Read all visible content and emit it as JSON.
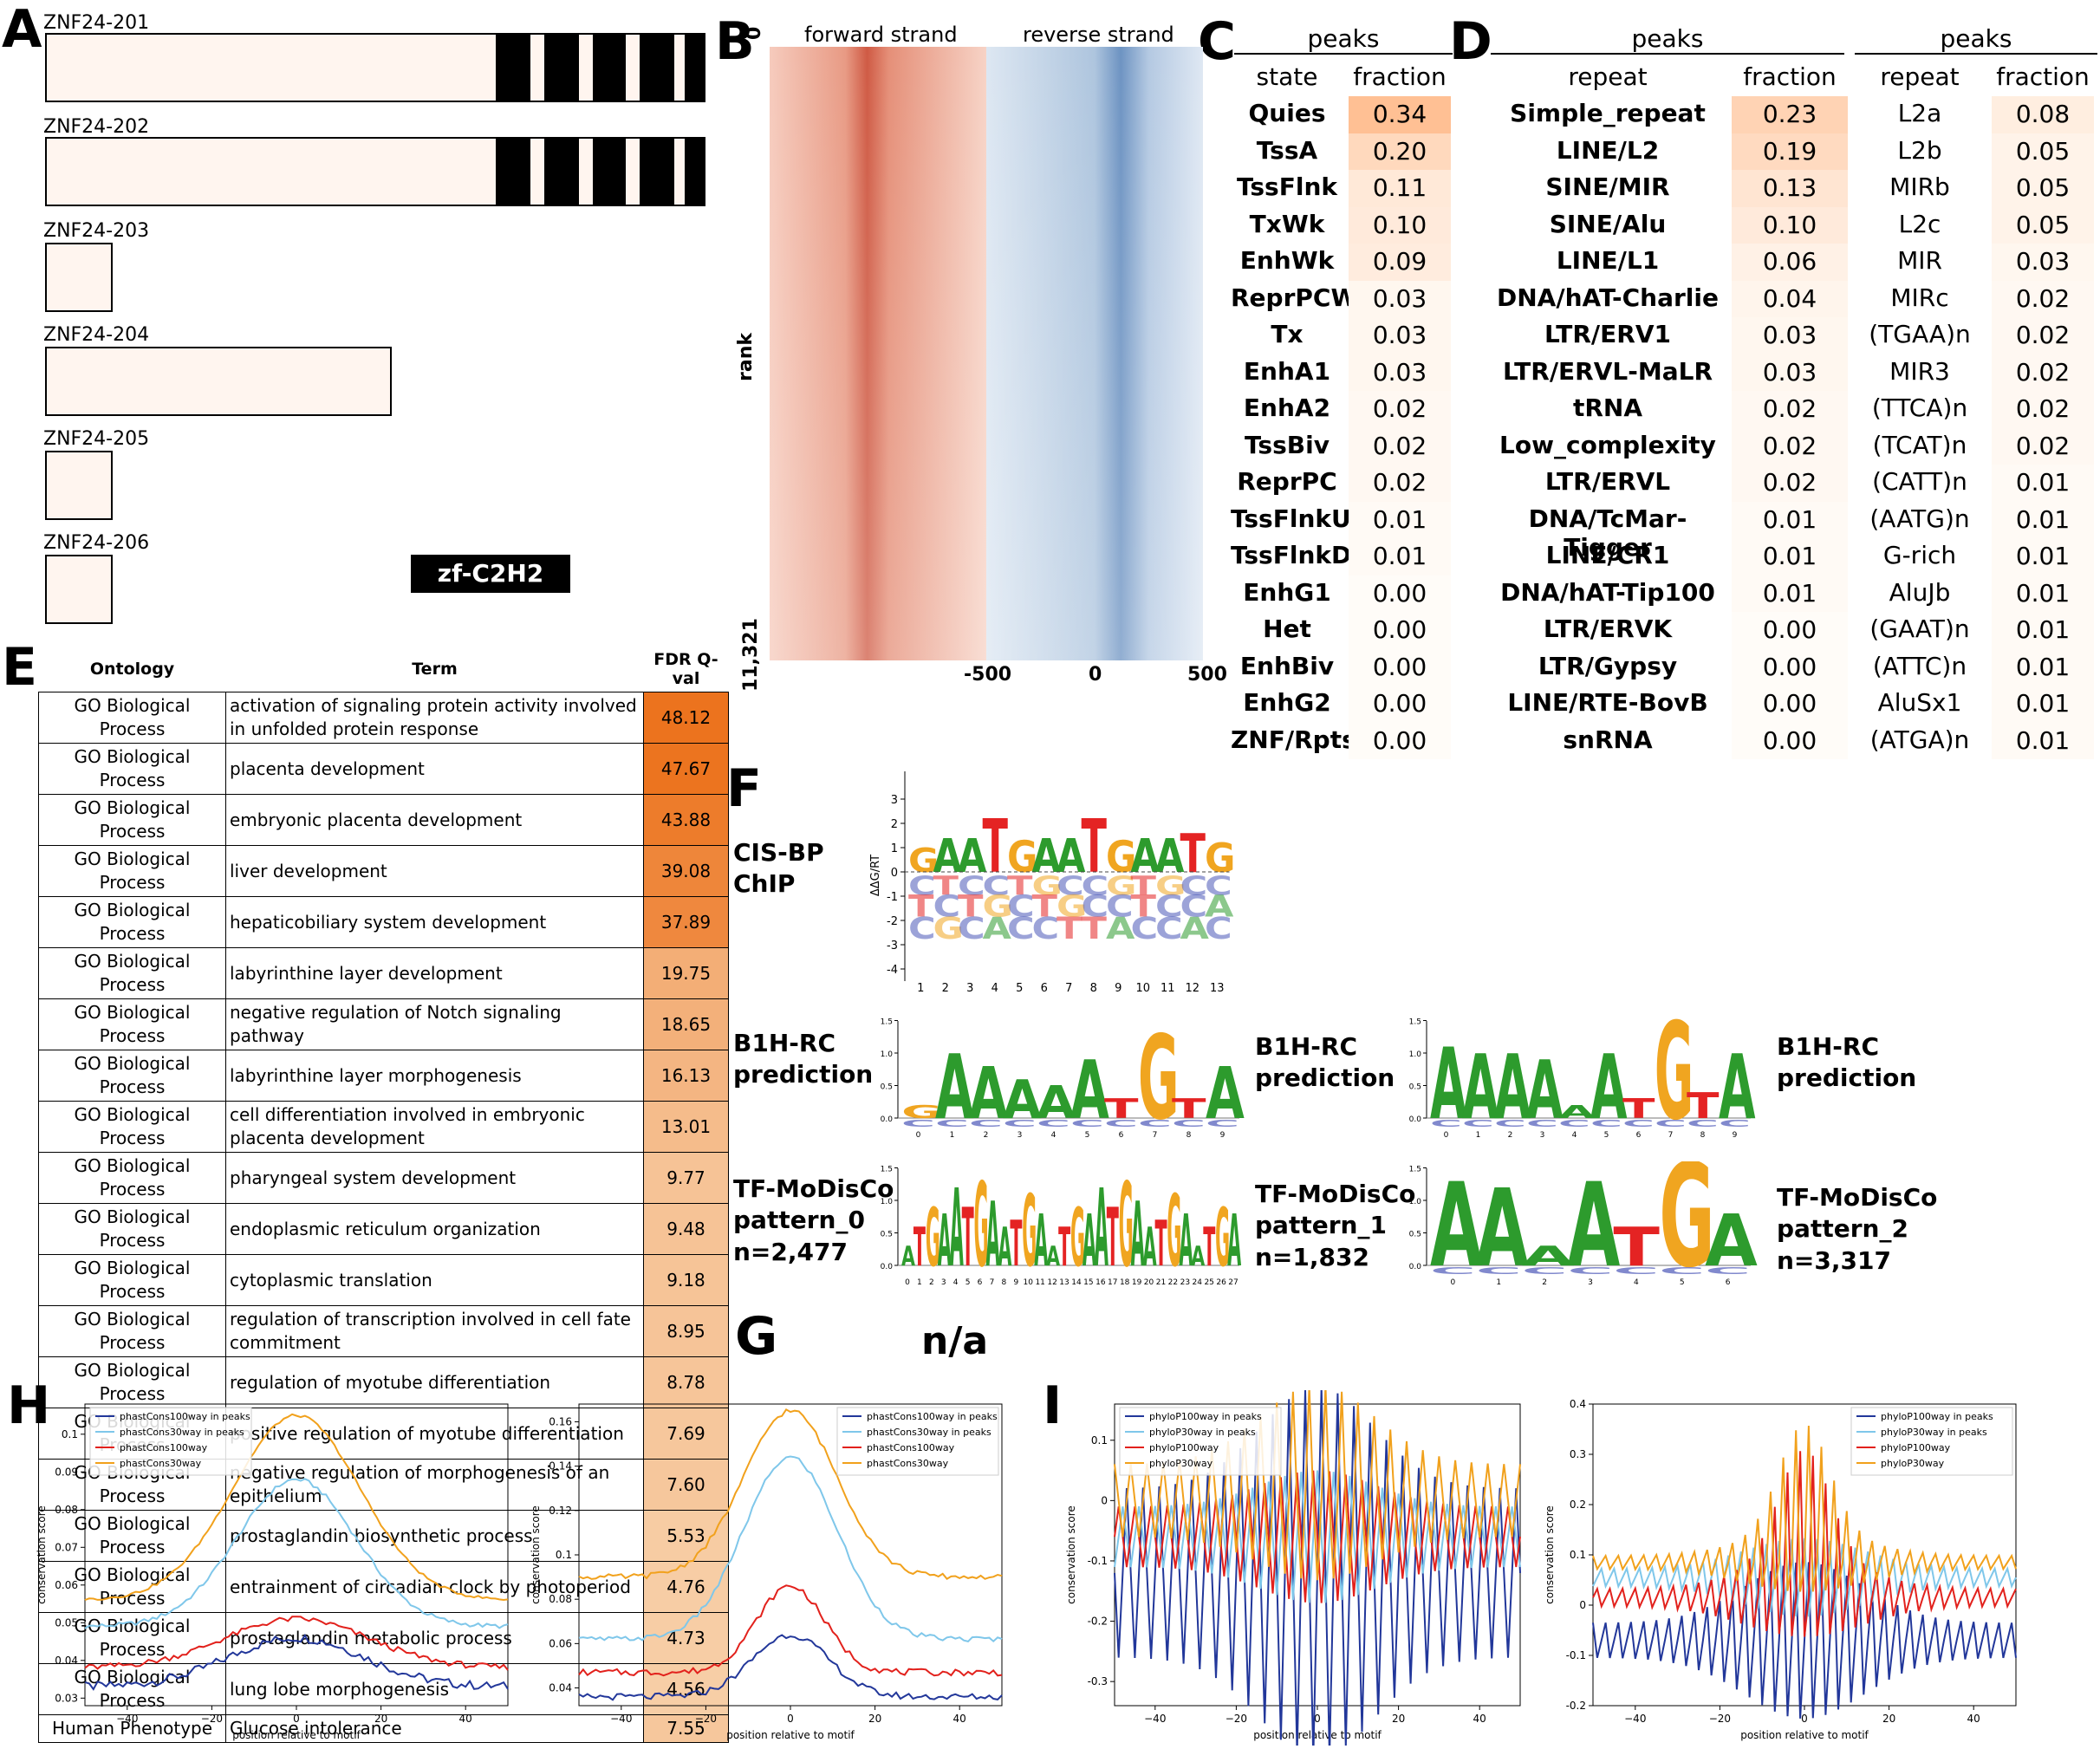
{
  "panel_labels": {
    "A": "A",
    "B": "B",
    "C": "C",
    "D": "D",
    "E": "E",
    "F": "F",
    "G": "G",
    "H": "H",
    "I": "I"
  },
  "panel_a": {
    "transcripts": [
      {
        "name": "ZNF24-201"
      },
      {
        "name": "ZNF24-202"
      },
      {
        "name": "ZNF24-203"
      },
      {
        "name": "ZNF24-204"
      },
      {
        "name": "ZNF24-205"
      },
      {
        "name": "ZNF24-206"
      }
    ],
    "domain_legend": "zf-C2H2"
  },
  "panel_b": {
    "forward_label": "forward strand",
    "reverse_label": "reverse strand",
    "y_label": "rank",
    "y_top": "0",
    "y_bottom": "11,321",
    "x_ticks": [
      "-500",
      "0",
      "500"
    ]
  },
  "panel_c": {
    "title": "peaks",
    "col1": "state",
    "col2": "fraction",
    "rows": [
      {
        "k": "Quies",
        "v": "0.34"
      },
      {
        "k": "TssA",
        "v": "0.20"
      },
      {
        "k": "TssFlnk",
        "v": "0.11"
      },
      {
        "k": "TxWk",
        "v": "0.10"
      },
      {
        "k": "EnhWk",
        "v": "0.09"
      },
      {
        "k": "ReprPCWk",
        "v": "0.03"
      },
      {
        "k": "Tx",
        "v": "0.03"
      },
      {
        "k": "EnhA1",
        "v": "0.03"
      },
      {
        "k": "EnhA2",
        "v": "0.02"
      },
      {
        "k": "TssBiv",
        "v": "0.02"
      },
      {
        "k": "ReprPC",
        "v": "0.02"
      },
      {
        "k": "TssFlnkU",
        "v": "0.01"
      },
      {
        "k": "TssFlnkD",
        "v": "0.01"
      },
      {
        "k": "EnhG1",
        "v": "0.00"
      },
      {
        "k": "Het",
        "v": "0.00"
      },
      {
        "k": "EnhBiv",
        "v": "0.00"
      },
      {
        "k": "EnhG2",
        "v": "0.00"
      },
      {
        "k": "ZNF/Rpts",
        "v": "0.00"
      }
    ]
  },
  "panel_d1": {
    "title": "peaks",
    "col1": "repeat",
    "col2": "fraction",
    "rows": [
      {
        "k": "Simple_repeat",
        "v": "0.23"
      },
      {
        "k": "LINE/L2",
        "v": "0.19"
      },
      {
        "k": "SINE/MIR",
        "v": "0.13"
      },
      {
        "k": "SINE/Alu",
        "v": "0.10"
      },
      {
        "k": "LINE/L1",
        "v": "0.06"
      },
      {
        "k": "DNA/hAT-Charlie",
        "v": "0.04"
      },
      {
        "k": "LTR/ERV1",
        "v": "0.03"
      },
      {
        "k": "LTR/ERVL-MaLR",
        "v": "0.03"
      },
      {
        "k": "tRNA",
        "v": "0.02"
      },
      {
        "k": "Low_complexity",
        "v": "0.02"
      },
      {
        "k": "LTR/ERVL",
        "v": "0.02"
      },
      {
        "k": "DNA/TcMar-Tigger",
        "v": "0.01"
      },
      {
        "k": "LINE/CR1",
        "v": "0.01"
      },
      {
        "k": "DNA/hAT-Tip100",
        "v": "0.01"
      },
      {
        "k": "LTR/ERVK",
        "v": "0.00"
      },
      {
        "k": "LTR/Gypsy",
        "v": "0.00"
      },
      {
        "k": "LINE/RTE-BovB",
        "v": "0.00"
      },
      {
        "k": "snRNA",
        "v": "0.00"
      }
    ]
  },
  "panel_d2": {
    "title": "peaks",
    "col1": "repeat",
    "col2": "fraction",
    "rows": [
      {
        "k": "L2a",
        "v": "0.08"
      },
      {
        "k": "L2b",
        "v": "0.05"
      },
      {
        "k": "MIRb",
        "v": "0.05"
      },
      {
        "k": "L2c",
        "v": "0.05"
      },
      {
        "k": "MIR",
        "v": "0.03"
      },
      {
        "k": "MIRc",
        "v": "0.02"
      },
      {
        "k": "(TGAA)n",
        "v": "0.02"
      },
      {
        "k": "MIR3",
        "v": "0.02"
      },
      {
        "k": "(TTCA)n",
        "v": "0.02"
      },
      {
        "k": "(TCAT)n",
        "v": "0.02"
      },
      {
        "k": "(CATT)n",
        "v": "0.01"
      },
      {
        "k": "(AATG)n",
        "v": "0.01"
      },
      {
        "k": "G-rich",
        "v": "0.01"
      },
      {
        "k": "AluJb",
        "v": "0.01"
      },
      {
        "k": "(GAAT)n",
        "v": "0.01"
      },
      {
        "k": "(ATTC)n",
        "v": "0.01"
      },
      {
        "k": "AluSx1",
        "v": "0.01"
      },
      {
        "k": "(ATGA)n",
        "v": "0.01"
      }
    ]
  },
  "panel_e": {
    "headers": [
      "Ontology",
      "Term",
      "FDR Q-val"
    ],
    "rows": [
      {
        "o": "GO Biological Process",
        "t": "activation of signaling protein activity involved in unfolded protein response",
        "q": "48.12"
      },
      {
        "o": "GO Biological Process",
        "t": "placenta development",
        "q": "47.67"
      },
      {
        "o": "GO Biological Process",
        "t": "embryonic placenta development",
        "q": "43.88"
      },
      {
        "o": "GO Biological Process",
        "t": "liver development",
        "q": "39.08"
      },
      {
        "o": "GO Biological Process",
        "t": "hepaticobiliary system development",
        "q": "37.89"
      },
      {
        "o": "GO Biological Process",
        "t": "labyrinthine layer development",
        "q": "19.75"
      },
      {
        "o": "GO Biological Process",
        "t": "negative regulation of Notch signaling pathway",
        "q": "18.65"
      },
      {
        "o": "GO Biological Process",
        "t": "labyrinthine layer morphogenesis",
        "q": "16.13"
      },
      {
        "o": "GO Biological Process",
        "t": "cell differentiation involved in embryonic placenta development",
        "q": "13.01"
      },
      {
        "o": "GO Biological Process",
        "t": "pharyngeal system development",
        "q": "9.77"
      },
      {
        "o": "GO Biological Process",
        "t": "endoplasmic reticulum organization",
        "q": "9.48"
      },
      {
        "o": "GO Biological Process",
        "t": "cytoplasmic translation",
        "q": "9.18"
      },
      {
        "o": "GO Biological Process",
        "t": "regulation of transcription involved in cell fate commitment",
        "q": "8.95"
      },
      {
        "o": "GO Biological Process",
        "t": "regulation of myotube differentiation",
        "q": "8.78"
      },
      {
        "o": "GO Biological Process",
        "t": "positive regulation of myotube differentiation",
        "q": "7.69"
      },
      {
        "o": "GO Biological Process",
        "t": "negative regulation of morphogenesis of an epithelium",
        "q": "7.60"
      },
      {
        "o": "GO Biological Process",
        "t": "prostaglandin biosynthetic process",
        "q": "5.53"
      },
      {
        "o": "GO Biological Process",
        "t": "entrainment of circadian clock by photoperiod",
        "q": "4.76"
      },
      {
        "o": "GO Biological Process",
        "t": "prostaglandin metabolic process",
        "q": "4.73"
      },
      {
        "o": "GO Biological Process",
        "t": "lung lobe morphogenesis",
        "q": "4.56"
      },
      {
        "o": "Human Phenotype",
        "t": "Glucose intolerance",
        "q": "7.55"
      }
    ]
  },
  "panel_f": {
    "cisbp_label": "CIS-BP\nChIP",
    "cisbp_ylabel": "ΔΔG/RT",
    "cisbp_yticks": [
      "3",
      "2",
      "1",
      "0",
      "-1",
      "-2",
      "-3",
      "-4"
    ],
    "cisbp_top": "GAATGAATGAATG",
    "b1h_label_1": "B1H-RC\nprediction",
    "b1h_label_2": "B1H-RC\nprediction",
    "b1h_label_3": "B1H-RC\nprediction",
    "b1h_seq_1": "GAAAAATGTA",
    "b1h_seq_2": "AAAAAATGTA",
    "tfm_label_0": "TF-MoDisCo\npattern_0\nn=2,477",
    "tfm_label_1": "TF-MoDisCo\npattern_1\nn=1,832",
    "tfm_label_2": "TF-MoDisCo\npattern_2\nn=3,317",
    "tfm_seq_0": "ATGAATGAATGAATGAATGAATGAATGA",
    "tfm_seq_2": "AAAATGA"
  },
  "panel_g": {
    "text": "n/a"
  },
  "chart_data": [
    {
      "type": "line",
      "panel": "H-left",
      "xlabel": "position relative to motif",
      "ylabel": "conservation score",
      "xlim": [
        -50,
        50
      ],
      "ylim": [
        0.028,
        0.108
      ],
      "yticks": [
        0.03,
        0.04,
        0.05,
        0.06,
        0.07,
        0.08,
        0.09,
        0.1
      ],
      "xticks": [
        -40,
        -20,
        0,
        20,
        40
      ],
      "legend": [
        "phastCons100way in peaks",
        "phastCons30way in peaks",
        "phastCons100way",
        "phastCons30way"
      ],
      "series": [
        {
          "name": "phastCons100way in peaks",
          "color": "#22379a",
          "base": 0.033,
          "peak": 0.046,
          "width": 16,
          "noise": 0.0012
        },
        {
          "name": "phastCons30way in peaks",
          "color": "#7fc7ea",
          "base": 0.049,
          "peak": 0.088,
          "width": 14,
          "noise": 0.0006
        },
        {
          "name": "phastCons100way",
          "color": "#e2211c",
          "base": 0.038,
          "peak": 0.051,
          "width": 17,
          "noise": 0.0008
        },
        {
          "name": "phastCons30way",
          "color": "#f1a11c",
          "base": 0.056,
          "peak": 0.105,
          "width": 15,
          "noise": 0.0004
        }
      ]
    },
    {
      "type": "line",
      "panel": "H-right",
      "xlabel": "position relative to motif",
      "ylabel": "conservation score",
      "xlim": [
        -50,
        50
      ],
      "ylim": [
        0.032,
        0.168
      ],
      "yticks": [
        0.04,
        0.06,
        0.08,
        0.1,
        0.12,
        0.14,
        0.16
      ],
      "xticks": [
        -40,
        -20,
        0,
        20,
        40
      ],
      "legend": [
        "phastCons100way in peaks",
        "phastCons30way in peaks",
        "phastCons100way",
        "phastCons30way"
      ],
      "series": [
        {
          "name": "phastCons100way in peaks",
          "color": "#22379a",
          "base": 0.036,
          "peak": 0.064,
          "width": 9,
          "noise": 0.0015
        },
        {
          "name": "phastCons30way in peaks",
          "color": "#7fc7ea",
          "base": 0.062,
          "peak": 0.144,
          "width": 11,
          "noise": 0.0012
        },
        {
          "name": "phastCons100way",
          "color": "#e2211c",
          "base": 0.047,
          "peak": 0.086,
          "width": 8,
          "noise": 0.0015
        },
        {
          "name": "phastCons30way",
          "color": "#f1a11c",
          "base": 0.09,
          "peak": 0.165,
          "width": 11,
          "noise": 0.0012
        }
      ]
    },
    {
      "type": "line",
      "panel": "I-left",
      "xlabel": "position relative to motif",
      "ylabel": "conservation score",
      "xlim": [
        -50,
        50
      ],
      "ylim": [
        -0.34,
        0.16
      ],
      "yticks": [
        -0.3,
        -0.2,
        -0.1,
        0.0,
        0.1
      ],
      "xticks": [
        -40,
        -20,
        0,
        20,
        40
      ],
      "legend": [
        "phyloP100way in peaks",
        "phyloP30way in peaks",
        "phyloP100way",
        "phyloP30way"
      ],
      "series": [
        {
          "name": "phyloP100way in peaks",
          "color": "#22379a",
          "base": -0.12,
          "amp": 0.14,
          "period": 4
        },
        {
          "name": "phyloP30way in peaks",
          "color": "#7fc7ea",
          "base": -0.06,
          "amp": 0.05,
          "period": 4
        },
        {
          "name": "phyloP100way",
          "color": "#e2211c",
          "base": -0.06,
          "amp": 0.05,
          "period": 4
        },
        {
          "name": "phyloP30way",
          "color": "#f1a11c",
          "base": 0.0,
          "amp": 0.06,
          "period": 4
        }
      ]
    },
    {
      "type": "line",
      "panel": "I-right",
      "xlabel": "position relative to motif",
      "ylabel": "conservation score",
      "xlim": [
        -50,
        50
      ],
      "ylim": [
        -0.2,
        0.4
      ],
      "yticks": [
        -0.2,
        -0.1,
        0.0,
        0.1,
        0.2,
        0.3,
        0.4
      ],
      "xticks": [
        -40,
        -20,
        0,
        20,
        40
      ],
      "legend": [
        "phyloP100way in peaks",
        "phyloP30way in peaks",
        "phyloP100way",
        "phyloP30way"
      ],
      "series": [
        {
          "name": "phyloP100way in peaks",
          "color": "#22379a",
          "base": -0.07,
          "amp": 0.04,
          "period": 3
        },
        {
          "name": "phyloP30way in peaks",
          "color": "#7fc7ea",
          "base": 0.055,
          "amp": 0.02,
          "period": 3
        },
        {
          "name": "phyloP100way",
          "color": "#e2211c",
          "base": 0.015,
          "amp": 0.02,
          "period": 3
        },
        {
          "name": "phyloP30way",
          "color": "#f1a11c",
          "base": 0.085,
          "amp": 0.015,
          "period": 3
        }
      ]
    }
  ]
}
